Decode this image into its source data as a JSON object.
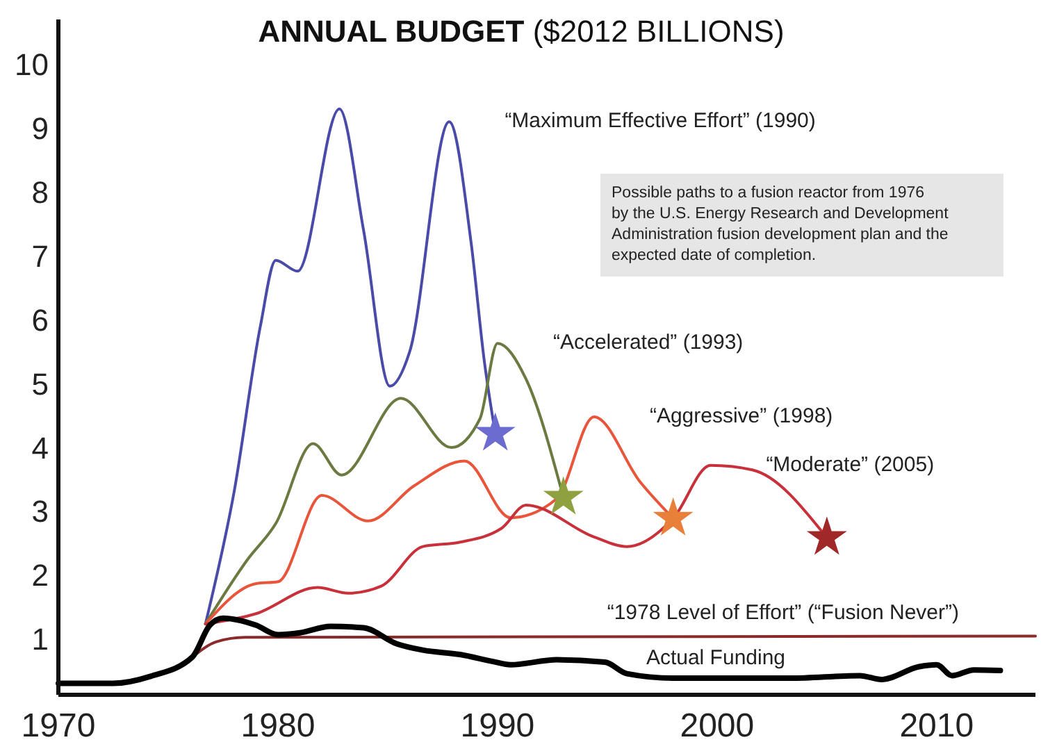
{
  "chart_data": {
    "type": "line",
    "title": "ANNUAL BUDGET",
    "subtitle": "($2012 BILLIONS)",
    "xlim": [
      1970,
      2014.5
    ],
    "xticks": [
      1970,
      1980,
      1990,
      2000,
      2010
    ],
    "ylim": [
      0.13,
      10.7
    ],
    "yticks": [
      1,
      2,
      3,
      4,
      5,
      6,
      7,
      8,
      9,
      10
    ],
    "annotations": [
      "Possible paths to a fusion reactor from 1976 by the U.S. Energy Research and Development Administration fusion development plan and the expected date of completion."
    ],
    "series": [
      {
        "name": "“Maximum Effective Effort” (1990)",
        "color": "#4a4aa8",
        "x": [
          1976.7,
          1978,
          1979.2,
          1979.9,
          1980.9,
          1982.8,
          1983.9,
          1985.1,
          1986,
          1987.8,
          1988.8,
          1989.4,
          1989.9
        ],
        "values": [
          1.24,
          3.3,
          5.9,
          6.93,
          6.76,
          9.3,
          7.4,
          4.96,
          5.5,
          9.1,
          7.2,
          5.35,
          4.22
        ]
      },
      {
        "name": "“Accelerated” (1993)",
        "color": "#6b7a40",
        "x": [
          1976.7,
          1978.6,
          1979.9,
          1981.6,
          1982.9,
          1985.6,
          1987.9,
          1989.2,
          1990,
          1991.3,
          1993
        ],
        "values": [
          1.24,
          2.24,
          2.81,
          4.06,
          3.57,
          4.77,
          4.0,
          4.45,
          5.63,
          5.07,
          3.22
        ]
      },
      {
        "name": "“Aggressive” (1998)",
        "color": "#e8553a",
        "x": [
          1976.7,
          1979,
          1980,
          1982,
          1984.1,
          1986.2,
          1988.5,
          1990.6,
          1992.7,
          1994.4,
          1996.5,
          1998
        ],
        "values": [
          1.24,
          1.87,
          1.9,
          3.25,
          2.85,
          3.4,
          3.79,
          2.9,
          3.2,
          4.48,
          3.46,
          2.89
        ]
      },
      {
        "name": "“Moderate” (2005)",
        "color": "#c8303a",
        "x": [
          1976.7,
          1979,
          1981.8,
          1983.2,
          1984.7,
          1986.6,
          1988.3,
          1990.2,
          1991.3,
          1994.4,
          1995.9,
          1998,
          1999.7,
          2001.6,
          2005
        ],
        "values": [
          1.24,
          1.4,
          1.81,
          1.72,
          1.83,
          2.45,
          2.52,
          2.74,
          3.1,
          2.6,
          2.45,
          2.89,
          3.72,
          3.65,
          2.59
        ]
      },
      {
        "name": "“1978 Level of Effort” (“Fusion Never”)",
        "color": "#8b2a2a",
        "x": [
          1976.1,
          1977.2,
          1978.5,
          2014.5
        ],
        "values": [
          0.72,
          0.96,
          1.03,
          1.05
        ]
      },
      {
        "name": "Actual Funding",
        "color": "#000000",
        "x": [
          1970,
          1972.5,
          1974.2,
          1976.1,
          1976.9,
          1977.5,
          1979,
          1980,
          1981,
          1982.4,
          1983.9,
          1985.4,
          1986.6,
          1988.3,
          1989.8,
          1990.6,
          1992.7,
          1994.9,
          1995.9,
          1998,
          2003.3,
          2006.5,
          2007.5,
          2009.2,
          2010,
          2010.7,
          2011.7,
          2012.9
        ],
        "values": [
          0.31,
          0.31,
          0.42,
          0.72,
          1.22,
          1.33,
          1.22,
          1.07,
          1.1,
          1.2,
          1.18,
          0.93,
          0.83,
          0.76,
          0.65,
          0.6,
          0.68,
          0.64,
          0.46,
          0.39,
          0.39,
          0.43,
          0.37,
          0.57,
          0.6,
          0.43,
          0.52,
          0.51
        ]
      },
      {
        "type": "scatter",
        "marker": "star",
        "x": [
          1989.9,
          1993,
          1998,
          2005
        ],
        "values": [
          4.22,
          3.22,
          2.89,
          2.59
        ],
        "colors": [
          "#6b6bd0",
          "#8fa040",
          "#e8803a",
          "#a02828"
        ]
      }
    ]
  }
}
